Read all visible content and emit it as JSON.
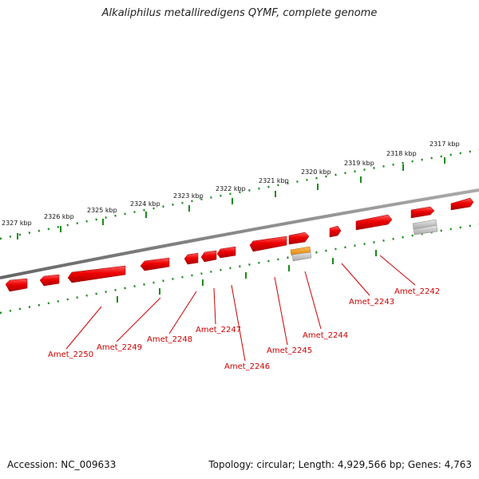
{
  "title": "Alkaliphilus metalliredigens QYMF, complete genome",
  "footer": {
    "accession": "Accession: NC_009633",
    "summary": "Topology: circular; Length: 4,929,566 bp; Genes: 4,763"
  },
  "colors": {
    "backbone": "#888888",
    "tick": "#1a8a1a",
    "gene": "#ee0000",
    "gene_label": "#cc0000",
    "rna": "#f09a10",
    "pseudo": "#bbbbbb"
  },
  "kbp_labels": [
    "2327 kbp",
    "2326 kbp",
    "2325 kbp",
    "2324 kbp",
    "2323 kbp",
    "2322 kbp",
    "2321 kbp",
    "2320 kbp",
    "2319 kbp",
    "2318 kbp",
    "2317 kbp"
  ],
  "gene_labels": [
    "Amet_2250",
    "Amet_2249",
    "Amet_2248",
    "Amet_2247",
    "Amet_2246",
    "Amet_2245",
    "Amet_2244",
    "Amet_2243",
    "Amet_2242"
  ]
}
